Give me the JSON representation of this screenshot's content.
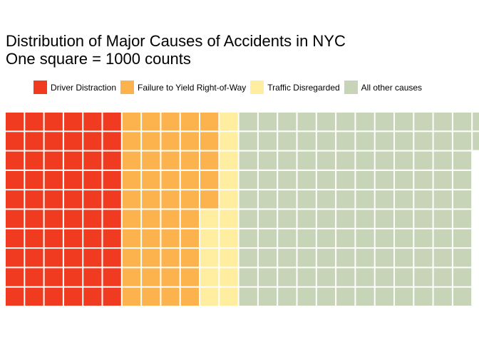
{
  "chart_data": {
    "type": "waffle",
    "title": "Distribution of Major Causes of Accidents in NYC",
    "subtitle": "One square = 1000 counts",
    "rows": 10,
    "fill_order": "column-wise, top to bottom",
    "series": [
      {
        "name": "Driver Distraction",
        "value": 60,
        "color": "#F03B20"
      },
      {
        "name": "Failure to Yield Right-of-Way",
        "value": 45,
        "color": "#FDB34D"
      },
      {
        "name": "Traffic Disregarded",
        "value": 15,
        "color": "#FFEDA0"
      },
      {
        "name": "All other causes",
        "value": 122,
        "color": "#C8D4B8"
      }
    ],
    "legend_position": "top"
  }
}
